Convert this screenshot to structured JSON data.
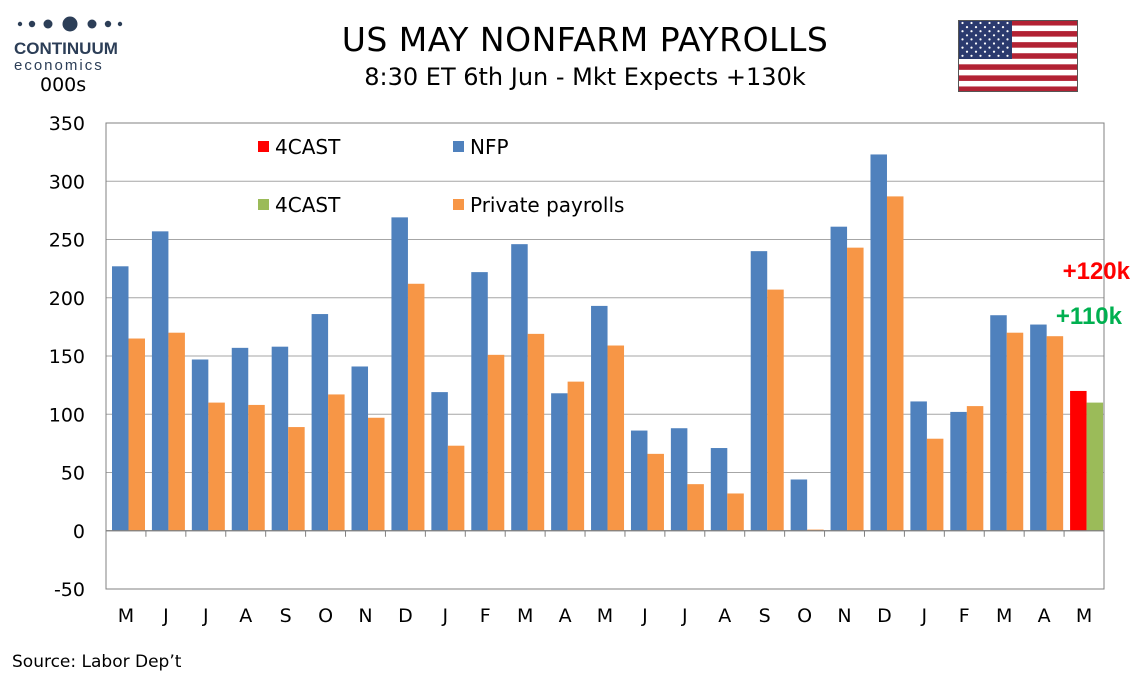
{
  "header": {
    "logo_name": "CONTINUUM",
    "logo_sub": "economics",
    "unit": "000s",
    "title": "US MAY NONFARM PAYROLLS",
    "subtitle": "8:30 ET 6th Jun - Mkt Expects +130k"
  },
  "footer": {
    "source": "Source: Labor Dep’t"
  },
  "colors": {
    "nfp": "#4f81bd",
    "private": "#f79646",
    "forecast_nfp": "#ff0000",
    "forecast_private": "#9bbb59",
    "grid": "#a6a6a6"
  },
  "icons": {
    "flag": "us-flag-icon",
    "logo": "continuum-logo-icon"
  },
  "chart_data": {
    "type": "bar",
    "categories": [
      "M",
      "J",
      "J",
      "A",
      "S",
      "O",
      "N",
      "D",
      "J",
      "F",
      "M",
      "A",
      "M",
      "J",
      "J",
      "A",
      "S",
      "O",
      "N",
      "D",
      "J",
      "F",
      "M",
      "A",
      "M"
    ],
    "series": [
      {
        "name": "NFP",
        "values": [
          227,
          257,
          147,
          157,
          158,
          186,
          141,
          269,
          119,
          222,
          246,
          118,
          193,
          86,
          88,
          71,
          240,
          44,
          261,
          323,
          111,
          102,
          185,
          177,
          null
        ]
      },
      {
        "name": "Private payrolls",
        "values": [
          165,
          170,
          110,
          108,
          89,
          117,
          97,
          212,
          73,
          151,
          169,
          128,
          159,
          66,
          40,
          32,
          207,
          1,
          243,
          287,
          79,
          107,
          170,
          167,
          null
        ]
      },
      {
        "name": "4CAST",
        "values": [
          null,
          null,
          null,
          null,
          null,
          null,
          null,
          null,
          null,
          null,
          null,
          null,
          null,
          null,
          null,
          null,
          null,
          null,
          null,
          null,
          null,
          null,
          null,
          null,
          120
        ]
      },
      {
        "name": "4CAST",
        "values": [
          null,
          null,
          null,
          null,
          null,
          null,
          null,
          null,
          null,
          null,
          null,
          null,
          null,
          null,
          null,
          null,
          null,
          null,
          null,
          null,
          null,
          null,
          null,
          null,
          110
        ]
      }
    ],
    "ylim": [
      -50,
      350
    ],
    "yticks": [
      -50,
      0,
      50,
      100,
      150,
      200,
      250,
      300,
      350
    ],
    "grid": true,
    "legend": [
      {
        "label": "4CAST",
        "color": "#ff0000"
      },
      {
        "label": "NFP",
        "color": "#4f81bd"
      },
      {
        "label": "4CAST",
        "color": "#9bbb59"
      },
      {
        "label": "Private payrolls",
        "color": "#f79646"
      }
    ],
    "annotations": [
      {
        "text": "+120k",
        "color": "#ff0000"
      },
      {
        "text": "+110k",
        "color": "#00b050"
      }
    ]
  }
}
